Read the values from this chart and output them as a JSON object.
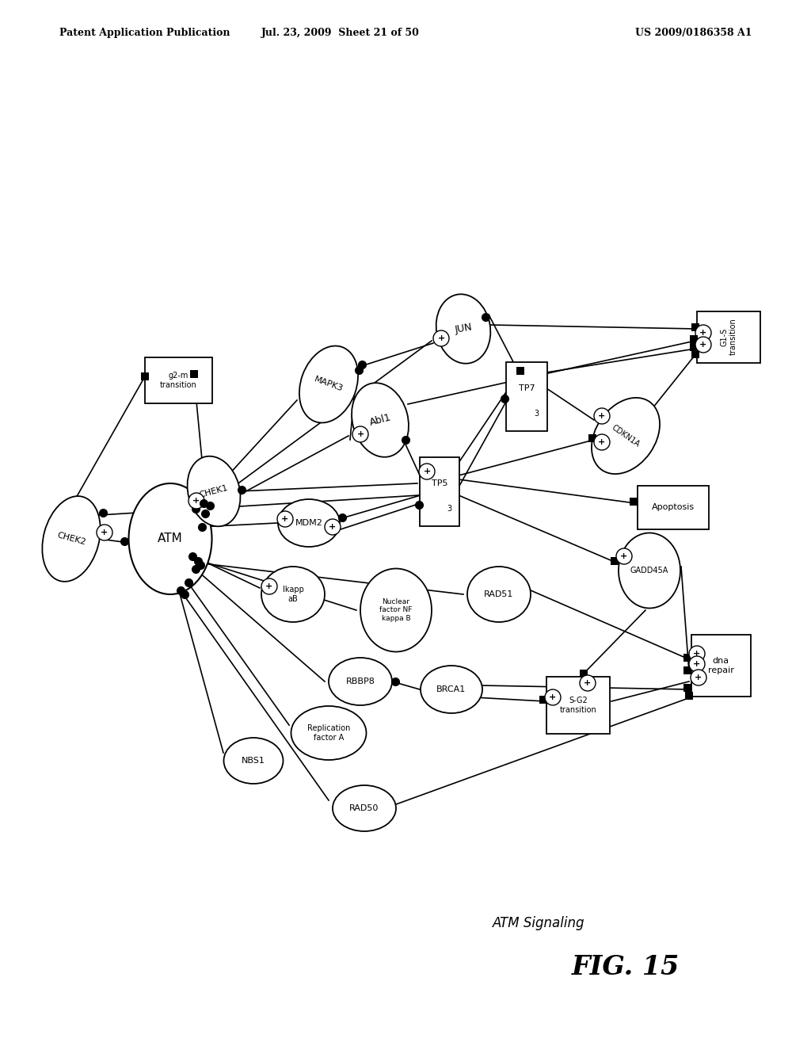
{
  "header_left": "Patent Application Publication",
  "header_mid": "Jul. 23, 2009  Sheet 21 of 50",
  "header_right": "US 2009/0186358 A1",
  "title": "ATM Signaling",
  "fig_label": "FIG. 15",
  "bg_color": "#ffffff"
}
